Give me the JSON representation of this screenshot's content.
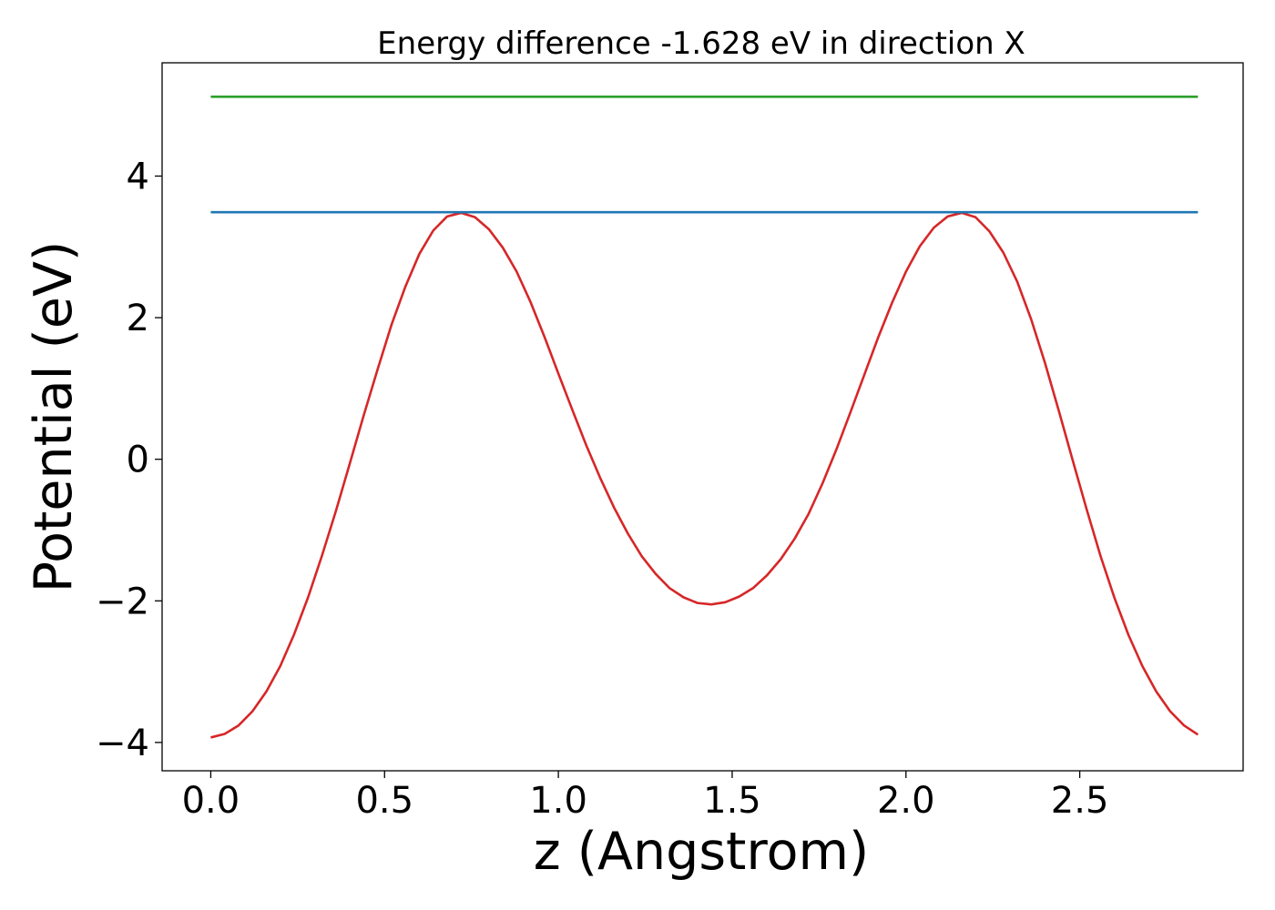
{
  "chart_data": {
    "type": "line",
    "title": "Energy difference -1.628 eV in direction X",
    "xlabel": "z (Angstrom)",
    "ylabel": "Potential (eV)",
    "xlim": [
      -0.14,
      2.97
    ],
    "ylim": [
      -4.4,
      5.6
    ],
    "xticks": [
      0.0,
      0.5,
      1.0,
      1.5,
      2.0,
      2.5
    ],
    "xtick_labels": [
      "0.0",
      "0.5",
      "1.0",
      "1.5",
      "2.0",
      "2.5"
    ],
    "yticks": [
      -4,
      -2,
      0,
      2,
      4
    ],
    "ytick_labels": [
      "−4",
      "−2",
      "0",
      "2",
      "4"
    ],
    "grid": false,
    "series": [
      {
        "color": "#d62728",
        "x": [
          0.0,
          0.04,
          0.08,
          0.12,
          0.16,
          0.2,
          0.24,
          0.28,
          0.32,
          0.36,
          0.4,
          0.44,
          0.48,
          0.52,
          0.56,
          0.6,
          0.64,
          0.68,
          0.72,
          0.76,
          0.8,
          0.84,
          0.88,
          0.92,
          0.96,
          1.0,
          1.04,
          1.08,
          1.12,
          1.16,
          1.2,
          1.24,
          1.28,
          1.32,
          1.36,
          1.4,
          1.44,
          1.48,
          1.52,
          1.56,
          1.6,
          1.64,
          1.68,
          1.72,
          1.76,
          1.8,
          1.84,
          1.88,
          1.92,
          1.96,
          2.0,
          2.04,
          2.08,
          2.12,
          2.16,
          2.2,
          2.24,
          2.28,
          2.32,
          2.36,
          2.4,
          2.44,
          2.48,
          2.52,
          2.56,
          2.6,
          2.64,
          2.68,
          2.72,
          2.76,
          2.8,
          2.84
        ],
        "y": [
          -3.93,
          -3.88,
          -3.76,
          -3.56,
          -3.28,
          -2.92,
          -2.47,
          -1.95,
          -1.36,
          -0.73,
          -0.06,
          0.62,
          1.27,
          1.9,
          2.44,
          2.9,
          3.23,
          3.43,
          3.48,
          3.42,
          3.25,
          2.99,
          2.65,
          2.22,
          1.73,
          1.21,
          0.7,
          0.2,
          -0.26,
          -0.68,
          -1.05,
          -1.37,
          -1.62,
          -1.82,
          -1.95,
          -2.03,
          -2.05,
          -2.02,
          -1.94,
          -1.82,
          -1.64,
          -1.41,
          -1.12,
          -0.77,
          -0.34,
          0.14,
          0.66,
          1.19,
          1.72,
          2.21,
          2.65,
          3.01,
          3.27,
          3.43,
          3.48,
          3.42,
          3.22,
          2.92,
          2.51,
          1.98,
          1.36,
          0.68,
          -0.02,
          -0.71,
          -1.37,
          -1.96,
          -2.48,
          -2.92,
          -3.28,
          -3.56,
          -3.76,
          -3.89
        ]
      },
      {
        "color": "#1f77b4",
        "x": [
          0.0,
          2.84
        ],
        "y": [
          3.49,
          3.49
        ]
      },
      {
        "color": "#2ca02c",
        "x": [
          0.0,
          2.84
        ],
        "y": [
          5.12,
          5.12
        ]
      }
    ]
  }
}
